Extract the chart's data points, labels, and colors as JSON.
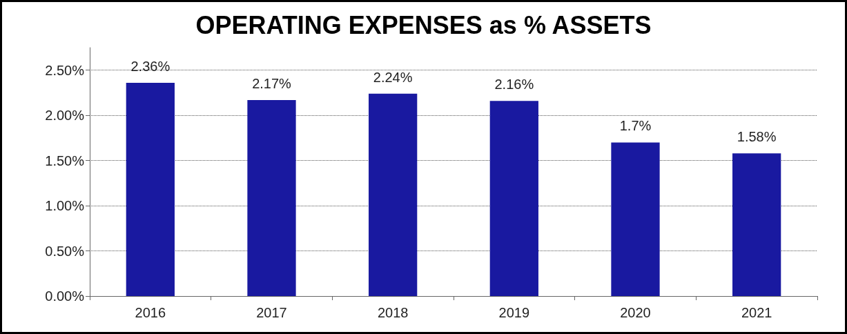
{
  "chart_data": {
    "type": "bar",
    "title": "OPERATING EXPENSES as % ASSETS",
    "categories": [
      "2016",
      "2017",
      "2018",
      "2019",
      "2020",
      "2021"
    ],
    "values": [
      2.36,
      2.17,
      2.24,
      2.16,
      1.7,
      1.58
    ],
    "value_labels": [
      "2.36%",
      "2.17%",
      "2.24%",
      "2.16%",
      "1.7%",
      "1.58%"
    ],
    "color": "#1919a0",
    "ylim": [
      0,
      2.75
    ],
    "yticks": [
      {
        "value": 0,
        "label": "0.00%"
      },
      {
        "value": 0.5,
        "label": "0.50%"
      },
      {
        "value": 1,
        "label": "1.00%"
      },
      {
        "value": 1.5,
        "label": "1.50%"
      },
      {
        "value": 2,
        "label": "2.00%"
      },
      {
        "value": 2.5,
        "label": "2.50%"
      }
    ],
    "grid": "y"
  }
}
